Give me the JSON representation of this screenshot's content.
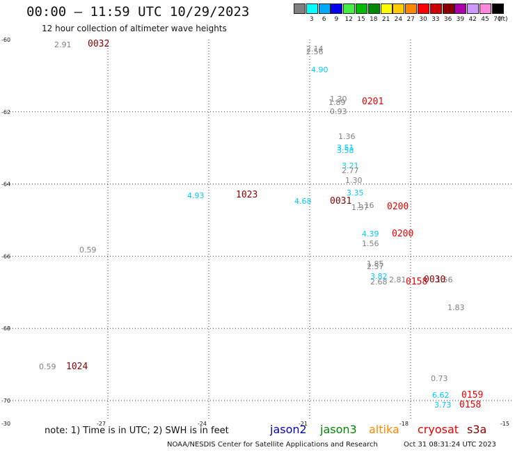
{
  "header": {
    "title": "00:00 – 11:59 UTC 10/29/2023",
    "subtitle": "12 hour collection of altimeter wave heights"
  },
  "legend": {
    "unit": "(ft)",
    "bins": [
      {
        "label": "3",
        "color": "#808080"
      },
      {
        "label": "6",
        "color": "#00ffff"
      },
      {
        "label": "9",
        "color": "#00aaff"
      },
      {
        "label": "12",
        "color": "#0000ee"
      },
      {
        "label": "15",
        "color": "#44ee44"
      },
      {
        "label": "18",
        "color": "#00bb00"
      },
      {
        "label": "21",
        "color": "#008800"
      },
      {
        "label": "24",
        "color": "#ffff00"
      },
      {
        "label": "27",
        "color": "#ffcc00"
      },
      {
        "label": "30",
        "color": "#ff8800"
      },
      {
        "label": "33",
        "color": "#ff0000"
      },
      {
        "label": "36",
        "color": "#cc0000"
      },
      {
        "label": "39",
        "color": "#880000"
      },
      {
        "label": "42",
        "color": "#aa00aa"
      },
      {
        "label": "45",
        "color": "#cc99ff"
      },
      {
        "label": "70",
        "color": "#ff88dd"
      },
      {
        "label": "",
        "color": "#000000"
      }
    ]
  },
  "map": {
    "lon_range": [
      -30,
      -15
    ],
    "lat_range": [
      -70.5,
      -60.0
    ],
    "lon_ticks": [
      "-30",
      "-27",
      "-24",
      "-21",
      "-18",
      "-15"
    ],
    "lat_ticks": [
      "-60",
      "-62",
      "-64",
      "-66",
      "-68",
      "-70"
    ],
    "grid": "dotted"
  },
  "observations": [
    {
      "text": "2.91",
      "color": "#808080",
      "lon": -28.6,
      "lat": -60.13
    },
    {
      "text": "2.14",
      "color": "#808080",
      "lon": -21.1,
      "lat": -60.25
    },
    {
      "text": "2.56",
      "color": "#808080",
      "lon": -21.1,
      "lat": -60.33
    },
    {
      "text": "4.90",
      "color": "#00c8ff",
      "lon": -20.95,
      "lat": -60.83
    },
    {
      "text": "1.30",
      "color": "#808080",
      "lon": -20.4,
      "lat": -61.63
    },
    {
      "text": "1.89",
      "color": "#808080",
      "lon": -20.45,
      "lat": -61.73
    },
    {
      "text": "0.93",
      "color": "#808080",
      "lon": -20.4,
      "lat": -61.98
    },
    {
      "text": "1.36",
      "color": "#808080",
      "lon": -20.15,
      "lat": -62.68
    },
    {
      "text": "3.51",
      "color": "#00c8ff",
      "lon": -20.2,
      "lat": -62.98
    },
    {
      "text": "3.58",
      "color": "#00c8ff",
      "lon": -20.2,
      "lat": -63.07
    },
    {
      "text": "3.21",
      "color": "#00c8ff",
      "lon": -20.05,
      "lat": -63.48
    },
    {
      "text": "2.77",
      "color": "#808080",
      "lon": -20.05,
      "lat": -63.62
    },
    {
      "text": "1.30",
      "color": "#808080",
      "lon": -19.95,
      "lat": -63.9
    },
    {
      "text": "3.35",
      "color": "#00c8ff",
      "lon": -19.9,
      "lat": -64.23
    },
    {
      "text": "4.93",
      "color": "#00c8ff",
      "lon": -24.65,
      "lat": -64.32
    },
    {
      "text": "4.68",
      "color": "#00c8ff",
      "lon": -21.45,
      "lat": -64.47
    },
    {
      "text": "1.16",
      "color": "#808080",
      "lon": -19.6,
      "lat": -64.58
    },
    {
      "text": "1.37",
      "color": "#808080",
      "lon": -19.75,
      "lat": -64.65
    },
    {
      "text": "4.39",
      "color": "#00c8ff",
      "lon": -19.45,
      "lat": -65.37
    },
    {
      "text": "0.59",
      "color": "#808080",
      "lon": -27.85,
      "lat": -65.82
    },
    {
      "text": "1.56",
      "color": "#808080",
      "lon": -19.45,
      "lat": -65.64
    },
    {
      "text": "1.85",
      "color": "#808080",
      "lon": -19.3,
      "lat": -66.21
    },
    {
      "text": "2.57",
      "color": "#808080",
      "lon": -19.3,
      "lat": -66.29
    },
    {
      "text": "3.82",
      "color": "#00c8ff",
      "lon": -19.2,
      "lat": -66.56
    },
    {
      "text": "2.68",
      "color": "#808080",
      "lon": -19.2,
      "lat": -66.71
    },
    {
      "text": "2.81",
      "color": "#808080",
      "lon": -18.65,
      "lat": -66.65
    },
    {
      "text": "1.56",
      "color": "#808080",
      "lon": -17.25,
      "lat": -66.65
    },
    {
      "text": "1.83",
      "color": "#808080",
      "lon": -16.9,
      "lat": -67.42
    },
    {
      "text": "0.59",
      "color": "#808080",
      "lon": -29.05,
      "lat": -69.06
    },
    {
      "text": "0.73",
      "color": "#808080",
      "lon": -17.4,
      "lat": -69.39
    },
    {
      "text": "6.62",
      "color": "#00c8ff",
      "lon": -17.35,
      "lat": -69.84
    },
    {
      "text": "3.73",
      "color": "#00c8ff",
      "lon": -17.3,
      "lat": -70.12
    }
  ],
  "pass_times": [
    {
      "text": "0032",
      "color": "#880000",
      "lon": -27.6,
      "lat": -60.12
    },
    {
      "text": "0201",
      "color": "#ee0000",
      "lon": -19.45,
      "lat": -61.72
    },
    {
      "text": "1023",
      "color": "#880000",
      "lon": -23.2,
      "lat": -64.3
    },
    {
      "text": "0031",
      "color": "#880000",
      "lon": -20.4,
      "lat": -64.47
    },
    {
      "text": "0200",
      "color": "#ee0000",
      "lon": -18.7,
      "lat": -64.62
    },
    {
      "text": "0200",
      "color": "#ee0000",
      "lon": -18.55,
      "lat": -65.37
    },
    {
      "text": "0158",
      "color": "#ee0000",
      "lon": -18.15,
      "lat": -66.7
    },
    {
      "text": "0030",
      "color": "#880000",
      "lon": -17.6,
      "lat": -66.65
    },
    {
      "text": "1024",
      "color": "#880000",
      "lon": -28.25,
      "lat": -69.06
    },
    {
      "text": "0159",
      "color": "#ee0000",
      "lon": -16.5,
      "lat": -69.84
    },
    {
      "text": "0158",
      "color": "#ee0000",
      "lon": -16.55,
      "lat": -70.12
    }
  ],
  "footer": {
    "note": "note: 1) Time is in UTC; 2) SWH is in feet",
    "satellites": [
      {
        "name": "jason2",
        "color": "#0000cc"
      },
      {
        "name": "jason3",
        "color": "#008800"
      },
      {
        "name": "altika",
        "color": "#ff8800"
      },
      {
        "name": "cryosat",
        "color": "#ee0000"
      },
      {
        "name": "s3a",
        "color": "#880000"
      }
    ],
    "credit": "NOAA/NESDIS Center for Satellite Applications and Research",
    "timestamp": "Oct 31 08:31:24 UTC 2023"
  }
}
